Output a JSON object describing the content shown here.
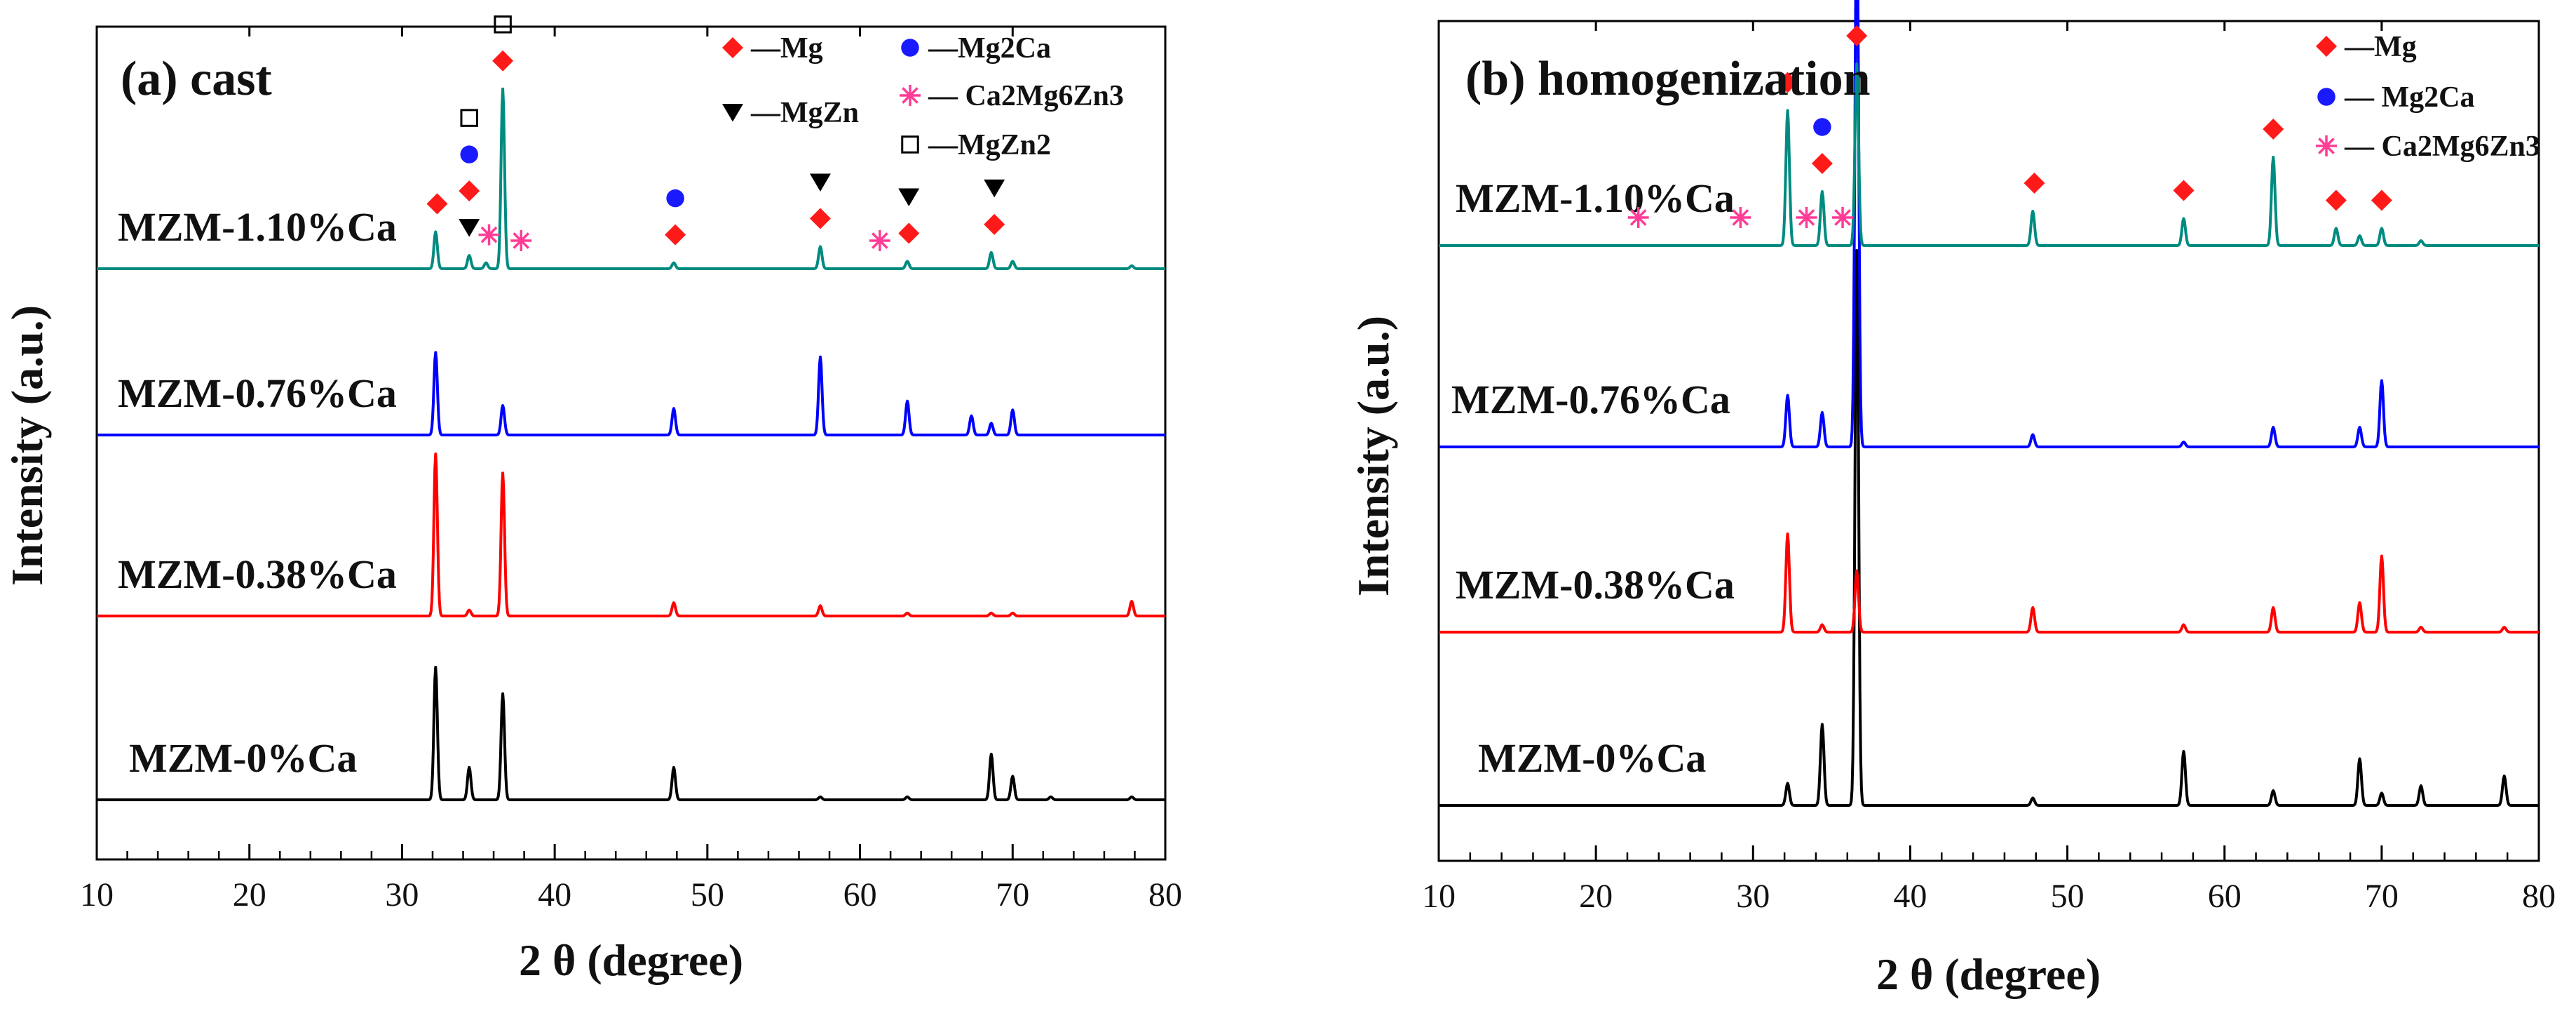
{
  "chart_data": [
    {
      "type": "line",
      "panel": "a",
      "title": "(a) cast",
      "xlabel": "2 θ (degree)",
      "ylabel": "Intensity (a.u.)",
      "xlim": [
        10,
        80
      ],
      "xticks": [
        10,
        20,
        30,
        40,
        50,
        60,
        70,
        80
      ],
      "legend": [
        {
          "phase": "Mg",
          "label": "—Mg",
          "marker": "diamond",
          "color": "#ff1a1a"
        },
        {
          "phase": "MgZn",
          "label": "—MgZn",
          "marker": "triangle-down",
          "color": "#000000"
        },
        {
          "phase": "Mg2Ca",
          "label": "—Mg2Ca",
          "marker": "circle",
          "color": "#1a1aff"
        },
        {
          "phase": "Ca2Mg6Zn3",
          "label": "— Ca2Mg6Zn3",
          "marker": "asterisk",
          "color": "#ff3c96"
        },
        {
          "phase": "MgZn2",
          "label": "—MgZn2",
          "marker": "square",
          "color": "#000000"
        }
      ],
      "series": [
        {
          "name": "MZM-0%Ca",
          "label": "MZM-0%Ca",
          "color": "#000000",
          "offset": 0,
          "peaks": [
            [
              32.2,
              90
            ],
            [
              34.4,
              22
            ],
            [
              36.6,
              72
            ],
            [
              47.8,
              22
            ],
            [
              57.4,
              2
            ],
            [
              63.1,
              2
            ],
            [
              68.6,
              31
            ],
            [
              70.0,
              16
            ],
            [
              72.5,
              2
            ],
            [
              77.8,
              2
            ]
          ]
        },
        {
          "name": "MZM-0.38%Ca",
          "label": "MZM-0.38%Ca",
          "color": "#ff0000",
          "offset": 0.88,
          "peaks": [
            [
              32.2,
              110
            ],
            [
              34.4,
              4
            ],
            [
              36.6,
              97
            ],
            [
              47.8,
              9
            ],
            [
              57.4,
              7
            ],
            [
              63.1,
              2
            ],
            [
              68.6,
              2
            ],
            [
              70.0,
              2
            ],
            [
              77.8,
              10
            ]
          ]
        },
        {
          "name": "MZM-0.76%Ca",
          "label": "MZM-0.76%Ca",
          "color": "#0000ff",
          "offset": 1.84,
          "peaks": [
            [
              32.2,
              56
            ],
            [
              36.6,
              20
            ],
            [
              47.8,
              18
            ],
            [
              57.4,
              53
            ],
            [
              63.1,
              23
            ],
            [
              67.3,
              13
            ],
            [
              68.6,
              8
            ],
            [
              70.0,
              17
            ]
          ]
        },
        {
          "name": "MZM-1.10%Ca",
          "label": "MZM-1.10%Ca",
          "color": "#008b80",
          "offset": 2.67,
          "peaks": [
            [
              32.2,
              25
            ],
            [
              34.4,
              9
            ],
            [
              35.5,
              4
            ],
            [
              36.6,
              122
            ],
            [
              47.8,
              4
            ],
            [
              57.4,
              15
            ],
            [
              63.1,
              5
            ],
            [
              68.6,
              11
            ],
            [
              70.0,
              5
            ],
            [
              77.8,
              2
            ]
          ]
        }
      ],
      "annotations": [
        {
          "phase": "Mg",
          "x": 32.3,
          "series": "MZM-1.10%Ca"
        },
        {
          "phase": "MgZn",
          "x": 34.4,
          "series": "MZM-1.10%Ca"
        },
        {
          "phase": "Mg",
          "x": 34.4,
          "series": "MZM-1.10%Ca"
        },
        {
          "phase": "Mg2Ca",
          "x": 34.4,
          "series": "MZM-1.10%Ca"
        },
        {
          "phase": "MgZn2",
          "x": 34.4,
          "series": "MZM-1.10%Ca"
        },
        {
          "phase": "Ca2Mg6Zn3",
          "x": 35.7,
          "series": "MZM-1.10%Ca"
        },
        {
          "phase": "Mg",
          "x": 36.6,
          "series": "MZM-1.10%Ca"
        },
        {
          "phase": "MgZn2",
          "x": 36.6,
          "series": "MZM-1.10%Ca"
        },
        {
          "phase": "Ca2Mg6Zn3",
          "x": 37.8,
          "series": "MZM-1.10%Ca"
        },
        {
          "phase": "Mg",
          "x": 47.9,
          "series": "MZM-1.10%Ca"
        },
        {
          "phase": "Mg2Ca",
          "x": 47.9,
          "series": "MZM-1.10%Ca"
        },
        {
          "phase": "Mg",
          "x": 57.4,
          "series": "MZM-1.10%Ca"
        },
        {
          "phase": "MgZn",
          "x": 57.4,
          "series": "MZM-1.10%Ca"
        },
        {
          "phase": "Ca2Mg6Zn3",
          "x": 61.3,
          "series": "MZM-1.10%Ca"
        },
        {
          "phase": "Mg",
          "x": 63.2,
          "series": "MZM-1.10%Ca"
        },
        {
          "phase": "MgZn",
          "x": 63.2,
          "series": "MZM-1.10%Ca"
        },
        {
          "phase": "Mg",
          "x": 68.8,
          "series": "MZM-1.10%Ca"
        },
        {
          "phase": "MgZn",
          "x": 68.8,
          "series": "MZM-1.10%Ca"
        }
      ]
    },
    {
      "type": "line",
      "panel": "b",
      "title": "(b) homogenization",
      "xlabel": "2 θ (degree)",
      "ylabel": "Intensity (a.u.)",
      "xlim": [
        10,
        80
      ],
      "xticks": [
        10,
        20,
        30,
        40,
        50,
        60,
        70,
        80
      ],
      "legend": [
        {
          "phase": "Mg",
          "label": "—Mg",
          "marker": "diamond",
          "color": "#ff1a1a"
        },
        {
          "phase": "Mg2Ca",
          "label": "— Mg2Ca",
          "marker": "circle",
          "color": "#1a1aff"
        },
        {
          "phase": "Ca2Mg6Zn3",
          "label": "— Ca2Mg6Zn3",
          "marker": "asterisk",
          "color": "#ff3c96"
        }
      ],
      "series": [
        {
          "name": "MZM-0%Ca",
          "label": "MZM-0%Ca",
          "color": "#000000",
          "offset": 0,
          "peaks": [
            [
              32.2,
              9
            ],
            [
              34.4,
              33
            ],
            [
              36.6,
              226
            ],
            [
              47.8,
              3
            ],
            [
              57.4,
              22
            ],
            [
              63.1,
              6
            ],
            [
              68.6,
              19
            ],
            [
              70.0,
              5
            ],
            [
              72.5,
              8
            ],
            [
              77.8,
              12
            ]
          ]
        },
        {
          "name": "MZM-0.38%Ca",
          "label": "MZM-0.38%Ca",
          "color": "#ff0000",
          "offset": 1.1,
          "peaks": [
            [
              32.2,
              40
            ],
            [
              34.4,
              3
            ],
            [
              36.6,
              25
            ],
            [
              47.8,
              10
            ],
            [
              57.4,
              3
            ],
            [
              63.1,
              10
            ],
            [
              68.6,
              12
            ],
            [
              70.0,
              31
            ],
            [
              72.5,
              2
            ],
            [
              77.8,
              2
            ]
          ]
        },
        {
          "name": "MZM-0.76%Ca",
          "label": "MZM-0.76%Ca",
          "color": "#0000ff",
          "offset": 2.15,
          "peaks": [
            [
              32.2,
              21
            ],
            [
              34.4,
              14
            ],
            [
              36.6,
              226
            ],
            [
              47.8,
              5
            ],
            [
              57.4,
              2
            ],
            [
              63.1,
              8
            ],
            [
              68.6,
              8
            ],
            [
              70.0,
              27
            ]
          ]
        },
        {
          "name": "MZM-1.10%Ca",
          "label": "MZM-1.10%Ca",
          "color": "#008b80",
          "offset": 3.4,
          "peaks": [
            [
              32.2,
              55
            ],
            [
              34.4,
              22
            ],
            [
              36.6,
              74
            ],
            [
              47.8,
              14
            ],
            [
              57.4,
              11
            ],
            [
              63.1,
              36
            ],
            [
              67.1,
              7
            ],
            [
              68.6,
              4
            ],
            [
              70.0,
              7
            ],
            [
              72.5,
              2
            ]
          ]
        }
      ],
      "annotations": [
        {
          "phase": "Ca2Mg6Zn3",
          "x": 22.7,
          "series": "MZM-1.10%Ca"
        },
        {
          "phase": "Ca2Mg6Zn3",
          "x": 29.2,
          "series": "MZM-1.10%Ca"
        },
        {
          "phase": "Mg",
          "x": 32.2,
          "series": "MZM-1.10%Ca"
        },
        {
          "phase": "Ca2Mg6Zn3",
          "x": 33.4,
          "series": "MZM-1.10%Ca"
        },
        {
          "phase": "Mg",
          "x": 34.4,
          "series": "MZM-1.10%Ca"
        },
        {
          "phase": "Mg2Ca",
          "x": 34.4,
          "series": "MZM-1.10%Ca"
        },
        {
          "phase": "Ca2Mg6Zn3",
          "x": 35.7,
          "series": "MZM-1.10%Ca"
        },
        {
          "phase": "Mg",
          "x": 36.6,
          "series": "MZM-1.10%Ca"
        },
        {
          "phase": "Mg",
          "x": 47.9,
          "series": "MZM-1.10%Ca"
        },
        {
          "phase": "Mg",
          "x": 57.4,
          "series": "MZM-1.10%Ca"
        },
        {
          "phase": "Mg",
          "x": 63.1,
          "series": "MZM-1.10%Ca"
        },
        {
          "phase": "Mg",
          "x": 67.1,
          "series": "MZM-1.10%Ca"
        },
        {
          "phase": "Mg",
          "x": 70.0,
          "series": "MZM-1.10%Ca"
        }
      ]
    }
  ]
}
